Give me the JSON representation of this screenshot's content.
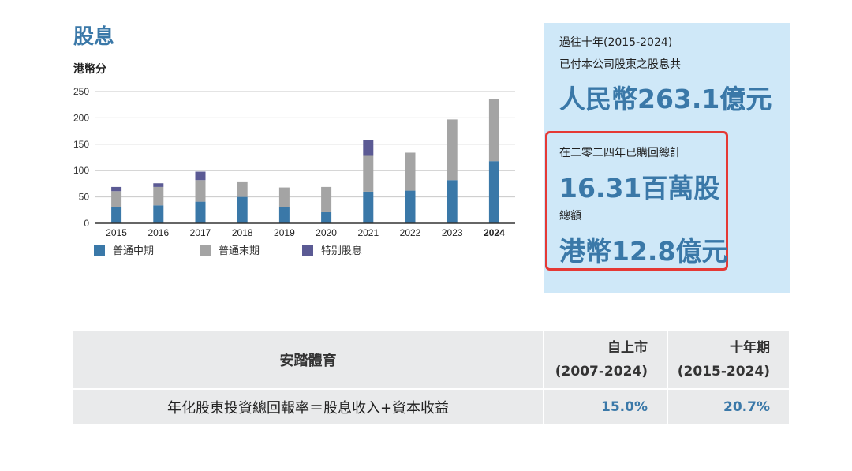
{
  "title": "股息",
  "colors": {
    "interim": "#3a78a8",
    "final": "#a4a4a4",
    "special": "#5b5a94",
    "accent": "#3a78a8",
    "panel_bg": "#cfe8f8",
    "highlight_box": "#e53935"
  },
  "chart_data": {
    "type": "bar",
    "stacked": true,
    "ylabel": "港幣分",
    "ylim": [
      0,
      250
    ],
    "yticks": [
      "0",
      "50",
      "100",
      "150",
      "200",
      "250"
    ],
    "categories": [
      "2015",
      "2016",
      "2017",
      "2018",
      "2019",
      "2020",
      "2021",
      "2022",
      "2023",
      "2024"
    ],
    "bold_category": "2024",
    "grid": true,
    "legend_position": "bottom",
    "series": [
      {
        "name": "普通中期",
        "color": "#3a78a8",
        "values": [
          30,
          34,
          41,
          50,
          31,
          21,
          60,
          62,
          82,
          118
        ]
      },
      {
        "name": "普通末期",
        "color": "#a4a4a4",
        "values": [
          31,
          35,
          41,
          28,
          37,
          48,
          68,
          72,
          115,
          118
        ]
      },
      {
        "name": "特别股息",
        "color": "#5b5a94",
        "values": [
          8,
          7,
          16,
          0,
          0,
          0,
          30,
          0,
          0,
          0
        ]
      }
    ]
  },
  "panel": {
    "line1": "過往十年(2015-2024)",
    "line2": "已付本公司股東之股息共",
    "big1": "人民幣263.1億元",
    "line3": "在二零二四年已購回總計",
    "big2": "16.31百萬股",
    "line4": "總額",
    "big3": "港幣12.8億元"
  },
  "table": {
    "header": {
      "name": "安踏體育",
      "col2": [
        "自上市",
        "(2007-2024)"
      ],
      "col3": [
        "十年期",
        "(2015-2024)"
      ]
    },
    "row": {
      "label": "年化股東投資總回報率＝股息收入+資本收益",
      "col2": "15.0%",
      "col3": "20.7%"
    }
  }
}
